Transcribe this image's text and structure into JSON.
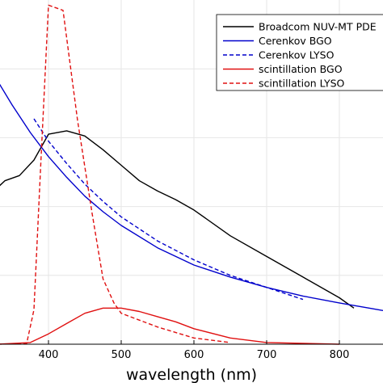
{
  "chart_data": {
    "type": "line",
    "title": "",
    "xlabel": "wavelength (nm)",
    "ylabel": "",
    "xlim": [
      330,
      860
    ],
    "ylim": [
      0,
      1.0
    ],
    "x_ticks": [
      400,
      500,
      600,
      700,
      800
    ],
    "x_tick_labels": [
      "400",
      "500",
      "600",
      "700",
      "800"
    ],
    "grid": true,
    "legend": {
      "placement": "top-right"
    },
    "series": [
      {
        "name": "Broadcom NUV-MT PDE",
        "color": "#000000",
        "style": "solid",
        "points": [
          [
            330,
            0.455
          ],
          [
            340,
            0.475
          ],
          [
            360,
            0.49
          ],
          [
            380,
            0.535
          ],
          [
            400,
            0.61
          ],
          [
            425,
            0.62
          ],
          [
            450,
            0.605
          ],
          [
            475,
            0.565
          ],
          [
            500,
            0.52
          ],
          [
            525,
            0.475
          ],
          [
            550,
            0.445
          ],
          [
            575,
            0.42
          ],
          [
            600,
            0.39
          ],
          [
            650,
            0.315
          ],
          [
            700,
            0.255
          ],
          [
            750,
            0.195
          ],
          [
            800,
            0.135
          ],
          [
            820,
            0.105
          ]
        ]
      },
      {
        "name": "Cerenkov BGO",
        "color": "#0000cc",
        "style": "solid",
        "points": [
          [
            330,
            0.765
          ],
          [
            350,
            0.695
          ],
          [
            375,
            0.615
          ],
          [
            400,
            0.545
          ],
          [
            425,
            0.485
          ],
          [
            450,
            0.43
          ],
          [
            475,
            0.385
          ],
          [
            500,
            0.345
          ],
          [
            550,
            0.28
          ],
          [
            600,
            0.23
          ],
          [
            650,
            0.195
          ],
          [
            700,
            0.165
          ],
          [
            750,
            0.14
          ],
          [
            800,
            0.12
          ],
          [
            860,
            0.098
          ]
        ]
      },
      {
        "name": "Cerenkov LYSO",
        "color": "#0000cc",
        "style": "dashed",
        "points": [
          [
            380,
            0.655
          ],
          [
            400,
            0.59
          ],
          [
            425,
            0.525
          ],
          [
            450,
            0.465
          ],
          [
            475,
            0.415
          ],
          [
            500,
            0.37
          ],
          [
            550,
            0.3
          ],
          [
            600,
            0.245
          ],
          [
            650,
            0.2
          ],
          [
            700,
            0.165
          ],
          [
            750,
            0.13
          ]
        ]
      },
      {
        "name": "scintillation BGO",
        "color": "#e01010",
        "style": "solid",
        "points": [
          [
            330,
            0.0
          ],
          [
            375,
            0.005
          ],
          [
            400,
            0.03
          ],
          [
            425,
            0.06
          ],
          [
            450,
            0.09
          ],
          [
            475,
            0.105
          ],
          [
            500,
            0.105
          ],
          [
            525,
            0.095
          ],
          [
            550,
            0.08
          ],
          [
            575,
            0.065
          ],
          [
            600,
            0.045
          ],
          [
            650,
            0.018
          ],
          [
            700,
            0.005
          ],
          [
            800,
            0.0
          ]
        ]
      },
      {
        "name": "scintillation LYSO",
        "color": "#e01010",
        "style": "dashed",
        "points": [
          [
            330,
            0.0
          ],
          [
            370,
            0.002
          ],
          [
            380,
            0.1
          ],
          [
            390,
            0.55
          ],
          [
            400,
            0.985
          ],
          [
            420,
            0.97
          ],
          [
            440,
            0.65
          ],
          [
            460,
            0.38
          ],
          [
            475,
            0.19
          ],
          [
            490,
            0.12
          ],
          [
            500,
            0.09
          ],
          [
            550,
            0.05
          ],
          [
            600,
            0.018
          ],
          [
            650,
            0.005
          ]
        ]
      }
    ]
  }
}
